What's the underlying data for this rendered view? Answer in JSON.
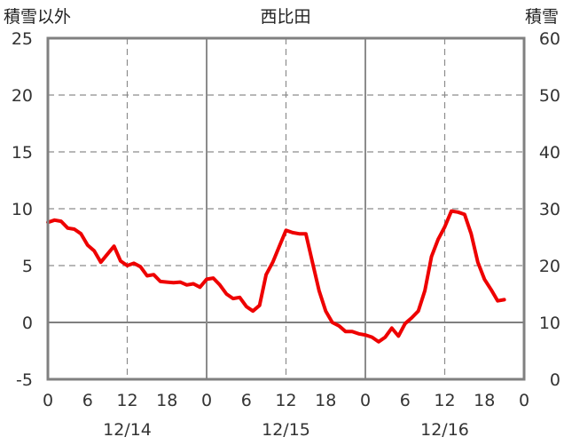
{
  "chart_data": {
    "type": "line",
    "title": "西比田",
    "left_axis_label": "積雪以外",
    "right_axis_label": "積雪",
    "left_axis": {
      "min": -5,
      "max": 25,
      "ticks": [
        "-5",
        "0",
        "5",
        "10",
        "15",
        "20",
        "25"
      ]
    },
    "right_axis": {
      "min": 0,
      "max": 60,
      "ticks": [
        "0",
        "10",
        "20",
        "30",
        "40",
        "50",
        "60"
      ]
    },
    "x_axis": {
      "min": 0,
      "max": 72,
      "hour_ticks": [
        "0",
        "6",
        "12",
        "18",
        "0",
        "6",
        "12",
        "18",
        "0",
        "6",
        "12",
        "18",
        "0"
      ],
      "date_labels": [
        "12/14",
        "12/15",
        "12/16"
      ],
      "date_label_hours": [
        12,
        36,
        60
      ]
    },
    "grid": {
      "solid_hours": [
        24,
        48
      ],
      "dashed_hours": [
        12,
        36,
        60
      ],
      "dashed_values": [
        0,
        5,
        10,
        15,
        20
      ]
    },
    "series": [
      {
        "axis": "left",
        "color": "#ee0000",
        "x": [
          0,
          1,
          2,
          3,
          4,
          5,
          6,
          7,
          8,
          9,
          10,
          11,
          12,
          13,
          14,
          15,
          16,
          17,
          18,
          19,
          20,
          21,
          22,
          23,
          24,
          25,
          26,
          27,
          28,
          29,
          30,
          31,
          32,
          33,
          34,
          35,
          36,
          37,
          38,
          39,
          40,
          41,
          42,
          43,
          44,
          45,
          46,
          47,
          48,
          49,
          50,
          51,
          52,
          53,
          54,
          55,
          56,
          57,
          58,
          59,
          60,
          61,
          62,
          63,
          64,
          65,
          66,
          67,
          68,
          69
        ],
        "values": [
          8.8,
          9.0,
          8.9,
          8.3,
          8.2,
          7.8,
          6.8,
          6.3,
          5.3,
          6.0,
          6.7,
          5.4,
          5.0,
          5.2,
          4.9,
          4.1,
          4.2,
          3.6,
          3.55,
          3.5,
          3.55,
          3.3,
          3.4,
          3.1,
          3.8,
          3.9,
          3.3,
          2.5,
          2.1,
          2.2,
          1.4,
          1.0,
          1.5,
          4.2,
          5.3,
          6.7,
          8.1,
          7.9,
          7.8,
          7.8,
          5.3,
          2.8,
          1.0,
          0.0,
          -0.3,
          -0.8,
          -0.8,
          -1.0,
          -1.1,
          -1.3,
          -1.7,
          -1.3,
          -0.5,
          -1.2,
          -0.1,
          0.4,
          1.0,
          2.8,
          5.8,
          7.3,
          8.4,
          9.8,
          9.7,
          9.5,
          7.8,
          5.3,
          3.8,
          2.9,
          1.9,
          2.0
        ]
      },
      {
        "axis": "right",
        "color": "#7030a0",
        "x": [
          0,
          69
        ],
        "values": [
          0,
          0
        ]
      }
    ]
  }
}
